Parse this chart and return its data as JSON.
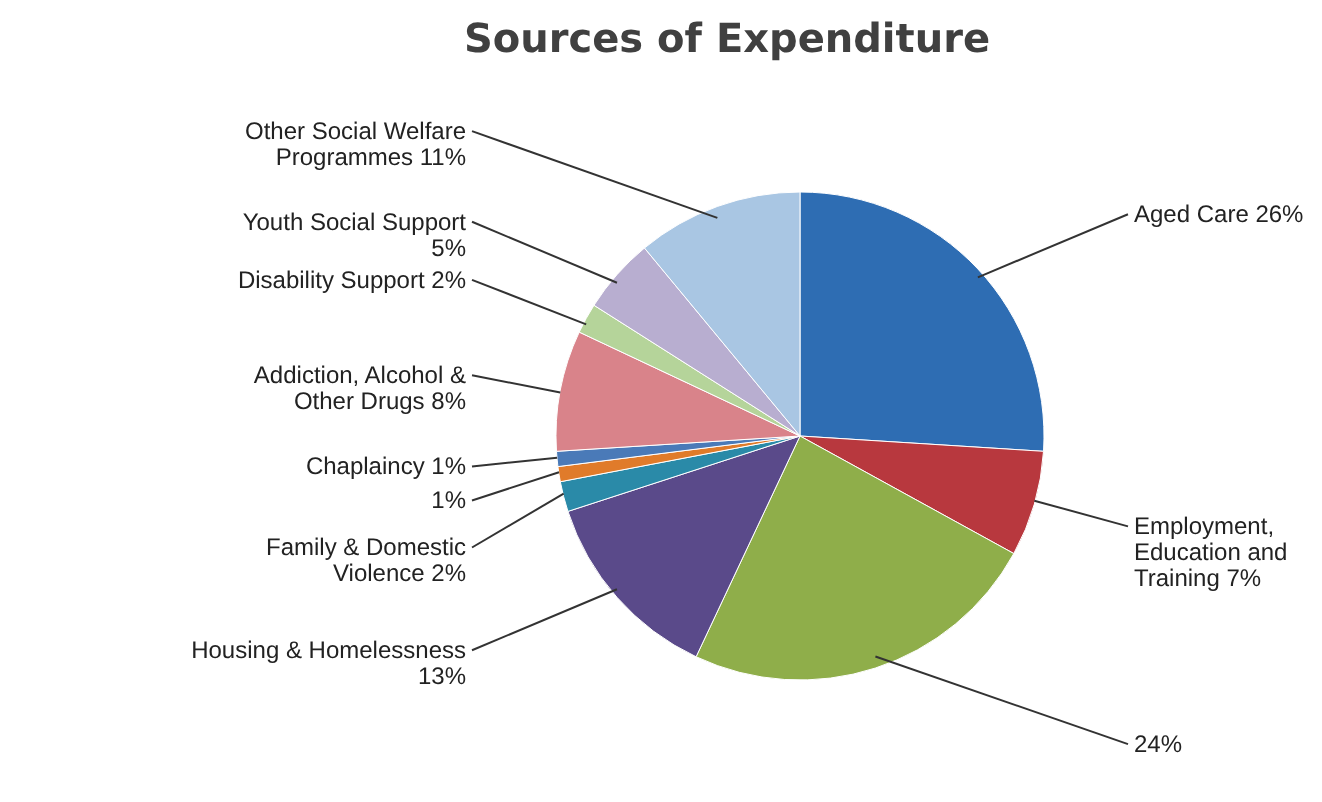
{
  "chart_data": {
    "type": "pie",
    "title": "Sources of Expenditure",
    "categories": [
      "Aged Care",
      "Employment, Education and Training",
      null,
      "Housing & Homelessness",
      "Family & Domestic Violence",
      null,
      "Chaplaincy",
      "Addiction, Alcohol & Other Drugs",
      "Disability Support",
      "Youth Social Support",
      "Other Social Welfare Programmes"
    ],
    "values": [
      26,
      7,
      24,
      13,
      2,
      1,
      1,
      8,
      2,
      5,
      11
    ],
    "value_labels": [
      "26%",
      "7%",
      "24%",
      "13%",
      "2%",
      "1%",
      "1%",
      "8%",
      "2%",
      "5%",
      "11%"
    ],
    "colors": [
      "#2e6db3",
      "#b8383e",
      "#8fae4a",
      "#5a4a8a",
      "#2a8aa8",
      "#e07b2a",
      "#4a7ab8",
      "#d9838a",
      "#b5d49a",
      "#b8aed0",
      "#a9c6e3"
    ]
  }
}
